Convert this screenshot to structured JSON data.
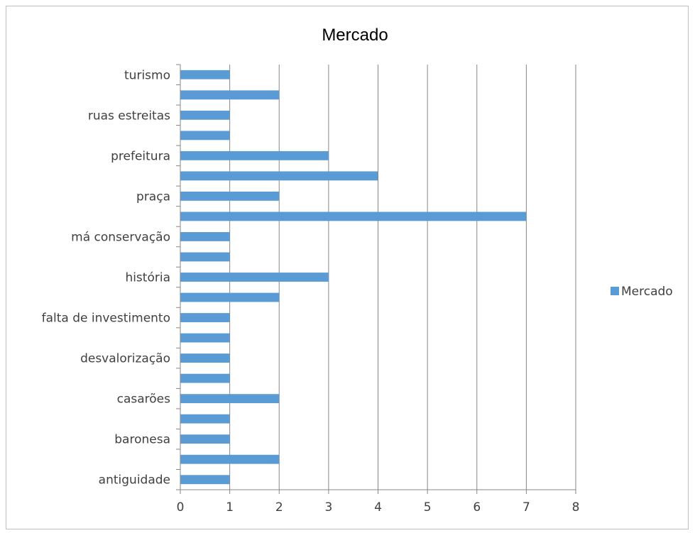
{
  "chart_data": {
    "type": "bar",
    "orientation": "horizontal",
    "title": "Mercado",
    "xlabel": "",
    "ylabel": "",
    "xlim": [
      0,
      8
    ],
    "x_ticks": [
      "0",
      "1",
      "2",
      "3",
      "4",
      "5",
      "6",
      "7",
      "8"
    ],
    "grid": "vertical major gridlines",
    "legend_position": "right",
    "bar_color": "#5b9bd5",
    "categories": [
      "antiguidade",
      "",
      "baronesa",
      "",
      "casarões",
      "",
      "desvalorização",
      "",
      "falta de investimento",
      "",
      "história",
      "",
      "má conservação",
      "",
      "praça",
      "",
      "prefeitura",
      "",
      "ruas estreitas",
      "",
      "turismo"
    ],
    "series": [
      {
        "name": "Mercado",
        "values": [
          1,
          2,
          1,
          1,
          2,
          1,
          1,
          1,
          1,
          2,
          3,
          1,
          1,
          7,
          2,
          4,
          3,
          1,
          1,
          2,
          1
        ]
      }
    ]
  }
}
